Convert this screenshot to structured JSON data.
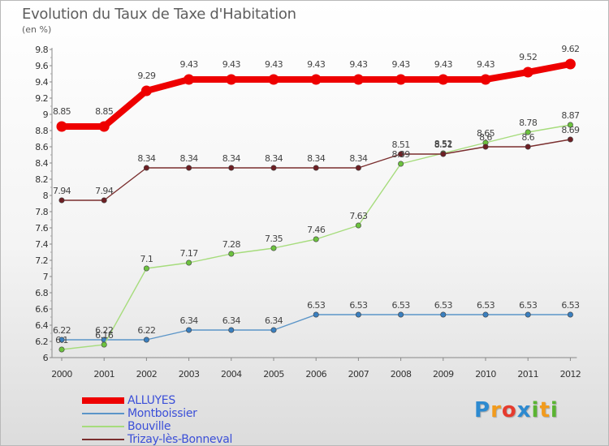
{
  "title": "Evolution du Taux de Taxe d'Habitation",
  "unit": "(en %)",
  "logo": {
    "letters": [
      "P",
      "r",
      "o",
      "x",
      "i",
      "t",
      "i"
    ],
    "colors": [
      "#2d8ad0",
      "#f29b1c",
      "#e63b2e",
      "#2d8ad0",
      "#5ab432",
      "#f29b1c",
      "#5ab432"
    ]
  },
  "chart_data": {
    "type": "line",
    "title": "Evolution du Taux de Taxe d'Habitation",
    "ylabel": "(en %)",
    "xlabel": "",
    "x": [
      "2000",
      "2001",
      "2002",
      "2003",
      "2004",
      "2005",
      "2006",
      "2007",
      "2008",
      "2009",
      "2010",
      "2011",
      "2012"
    ],
    "ylim": [
      6,
      9.8
    ],
    "yticks": [
      "6",
      "6.2",
      "6.4",
      "6.6",
      "6.8",
      "7",
      "7.2",
      "7.4",
      "7.6",
      "7.8",
      "8",
      "8.2",
      "8.4",
      "8.6",
      "8.8",
      "9",
      "9.2",
      "9.4",
      "9.6",
      "9.8"
    ],
    "grid": false,
    "legend_position": "bottom-left",
    "series": [
      {
        "name": "ALLUYES",
        "color": "#ee0000",
        "thick": true,
        "values": [
          8.85,
          8.85,
          9.29,
          9.43,
          9.43,
          9.43,
          9.43,
          9.43,
          9.43,
          9.43,
          9.43,
          9.52,
          9.62
        ],
        "labels": [
          "8.85",
          "8.85",
          "9.29",
          "9.43",
          "9.43",
          "9.43",
          "9.43",
          "9.43",
          "9.43",
          "9.43",
          "9.43",
          "9.52",
          "9.62"
        ]
      },
      {
        "name": "Montboissier",
        "color": "#5b95c8",
        "point_color": "#3a7fbf",
        "thick": false,
        "values": [
          6.22,
          6.22,
          6.22,
          6.34,
          6.34,
          6.34,
          6.53,
          6.53,
          6.53,
          6.53,
          6.53,
          6.53,
          6.53
        ],
        "labels": [
          "6.22",
          "6.22",
          "6.22",
          "6.34",
          "6.34",
          "6.34",
          "6.53",
          "6.53",
          "6.53",
          "6.53",
          "6.53",
          "6.53",
          "6.53"
        ]
      },
      {
        "name": "Bouville",
        "color": "#a6dc7c",
        "point_color": "#6cc23e",
        "thick": false,
        "values": [
          6.1,
          6.16,
          7.1,
          7.17,
          7.28,
          7.35,
          7.46,
          7.63,
          8.39,
          8.52,
          8.65,
          8.78,
          8.87
        ],
        "labels": [
          "6.1",
          "6.16",
          "7.1",
          "7.17",
          "7.28",
          "7.35",
          "7.46",
          "7.63",
          "8.39",
          "8.52",
          "8.65",
          "8.78",
          "8.87"
        ]
      },
      {
        "name": "Trizay-lès-Bonneval",
        "color": "#7a2e2e",
        "point_color": "#6e1f24",
        "thick": false,
        "values": [
          7.94,
          7.94,
          8.34,
          8.34,
          8.34,
          8.34,
          8.34,
          8.34,
          8.51,
          8.51,
          8.6,
          8.6,
          8.69
        ],
        "labels": [
          "7.94",
          "7.94",
          "8.34",
          "8.34",
          "8.34",
          "8.34",
          "8.34",
          "8.34",
          "8.51",
          "8.51",
          "8.6",
          "8.6",
          "8.69"
        ]
      }
    ]
  }
}
